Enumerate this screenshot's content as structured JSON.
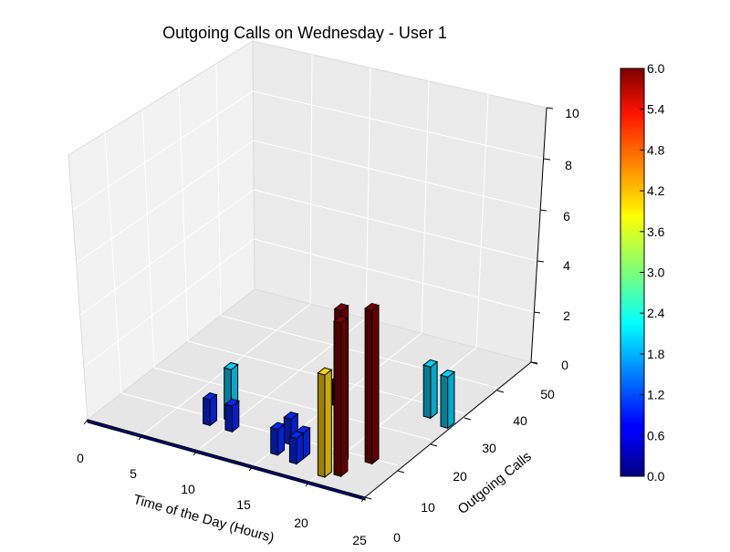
{
  "chart_data": {
    "type": "bar3d",
    "title": "Outgoing Calls on Wednesday - User 1",
    "xlabel": "Time of the Day (Hours)",
    "ylabel": "Outgoing Calls",
    "xlim": [
      0,
      25
    ],
    "ylim": [
      0,
      50
    ],
    "zlim": [
      0,
      10
    ],
    "x_ticks": [
      "0",
      "5",
      "10",
      "15",
      "20",
      "25"
    ],
    "y_ticks": [
      "0",
      "10",
      "20",
      "30",
      "40",
      "50"
    ],
    "z_ticks": [
      "0",
      "2",
      "4",
      "6",
      "8",
      "10"
    ],
    "colorbar": {
      "min": 0,
      "max": 6,
      "ticks": [
        "0.0",
        "0.6",
        "1.2",
        "1.8",
        "2.4",
        "3.0",
        "3.6",
        "4.2",
        "4.8",
        "5.4",
        "6.0"
      ]
    },
    "grid": true,
    "bars": [
      {
        "hour": 8,
        "calls": 1,
        "value": 1
      },
      {
        "hour": 10,
        "calls": 1,
        "value": 1
      },
      {
        "hour": 9,
        "calls": 2,
        "value": 2
      },
      {
        "hour": 15,
        "calls": 1,
        "value": 1
      },
      {
        "hour": 15,
        "calls": 1,
        "value": 1
      },
      {
        "hour": 17,
        "calls": 1,
        "value": 1
      },
      {
        "hour": 17,
        "calls": 1,
        "value": 1
      },
      {
        "hour": 15,
        "calls": 1,
        "value": 1
      },
      {
        "hour": 20,
        "calls": 4,
        "value": 4
      },
      {
        "hour": 20,
        "calls": 6,
        "value": 6
      },
      {
        "hour": 21,
        "calls": 6,
        "value": 6
      },
      {
        "hour": 22,
        "calls": 6,
        "value": 6
      },
      {
        "hour": 22,
        "calls": 2,
        "value": 2
      },
      {
        "hour": 24,
        "calls": 2,
        "value": 2
      }
    ]
  }
}
